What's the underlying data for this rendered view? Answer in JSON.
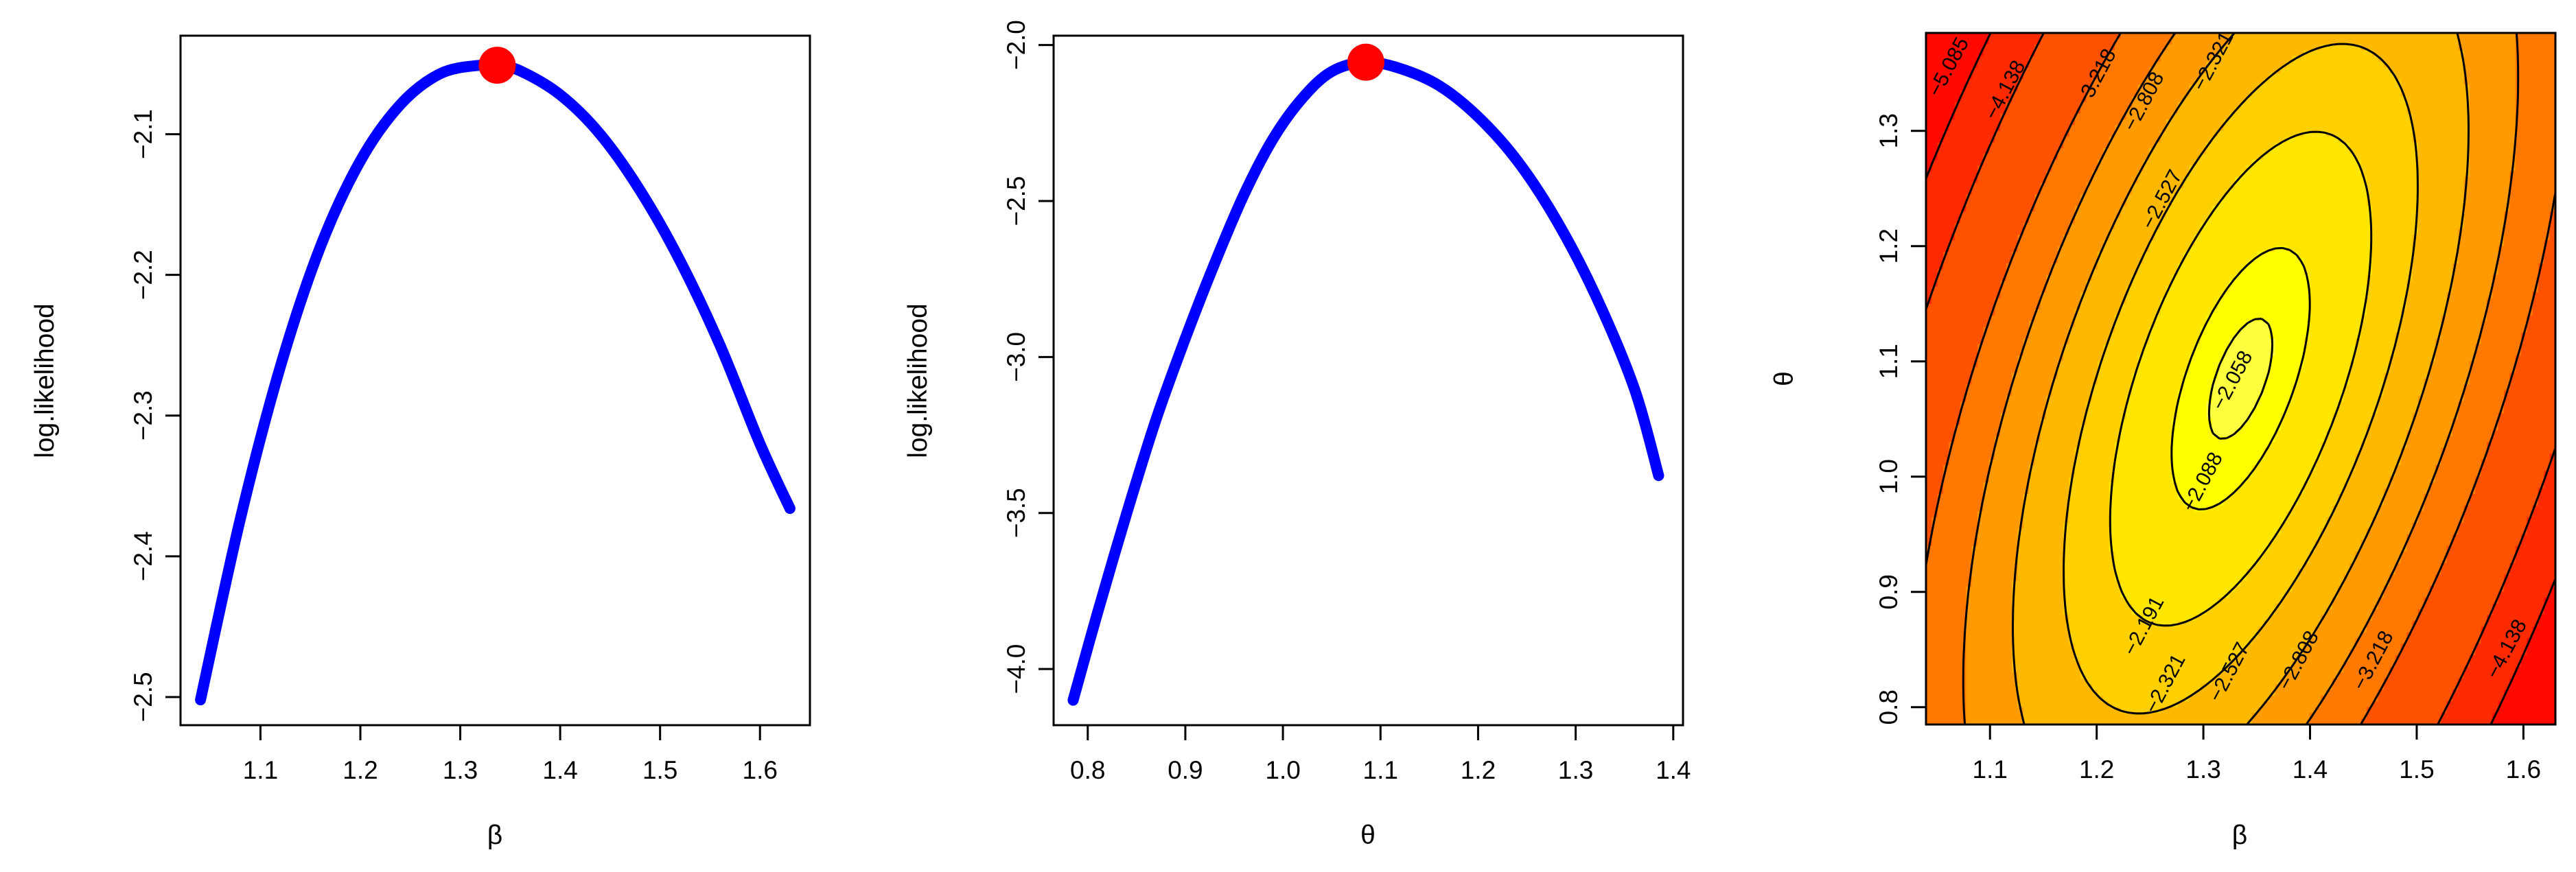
{
  "chart_data": [
    {
      "type": "line",
      "xlabel": "β",
      "ylabel": "log.likelihood",
      "xlim": [
        1.02,
        1.65
      ],
      "ylim": [
        -2.52,
        -2.03
      ],
      "xticks": [
        "1.1",
        "1.2",
        "1.3",
        "1.4",
        "1.5",
        "1.6"
      ],
      "yticks": [
        "-2.5",
        "-2.4",
        "-2.3",
        "-2.2",
        "-2.1"
      ],
      "series": [
        {
          "color": "#0000ff",
          "x": [
            1.04,
            1.08,
            1.12,
            1.16,
            1.2,
            1.24,
            1.28,
            1.32,
            1.34,
            1.36,
            1.4,
            1.44,
            1.48,
            1.52,
            1.56,
            1.6,
            1.63
          ],
          "y": [
            -2.502,
            -2.373,
            -2.265,
            -2.18,
            -2.119,
            -2.079,
            -2.057,
            -2.051,
            -2.052,
            -2.055,
            -2.072,
            -2.1,
            -2.14,
            -2.19,
            -2.25,
            -2.32,
            -2.366
          ]
        }
      ],
      "marker": {
        "x": 1.337,
        "y": -2.051,
        "color": "#ff0000"
      }
    },
    {
      "type": "line",
      "xlabel": "θ",
      "ylabel": "log.likelihood",
      "xlim": [
        0.765,
        1.41
      ],
      "ylim": [
        -4.18,
        -1.97
      ],
      "xticks": [
        "0.8",
        "0.9",
        "1.0",
        "1.1",
        "1.2",
        "1.3",
        "1.4"
      ],
      "yticks": [
        "-4.0",
        "-3.5",
        "-3.0",
        "-2.5",
        "-2.0"
      ],
      "series": [
        {
          "color": "#0000ff",
          "x": [
            0.785,
            0.81,
            0.84,
            0.87,
            0.9,
            0.93,
            0.96,
            0.99,
            1.02,
            1.05,
            1.085,
            1.12,
            1.16,
            1.2,
            1.24,
            1.28,
            1.32,
            1.36,
            1.385
          ],
          "y": [
            -4.1,
            -3.82,
            -3.5,
            -3.2,
            -2.94,
            -2.7,
            -2.48,
            -2.3,
            -2.17,
            -2.085,
            -2.055,
            -2.075,
            -2.13,
            -2.23,
            -2.37,
            -2.56,
            -2.8,
            -3.1,
            -3.38
          ]
        }
      ],
      "marker": {
        "x": 1.085,
        "y": -2.055,
        "color": "#ff0000"
      }
    },
    {
      "type": "heatmap",
      "xlabel": "β",
      "ylabel": "θ",
      "xlim": [
        1.04,
        1.63
      ],
      "ylim": [
        0.785,
        1.385
      ],
      "xticks": [
        "1.1",
        "1.2",
        "1.3",
        "1.4",
        "1.5",
        "1.6"
      ],
      "yticks": [
        "0.8",
        "0.9",
        "1.0",
        "1.1",
        "1.2",
        "1.3"
      ],
      "contour_levels": [
        "-2.058",
        "-2.088",
        "-2.191",
        "-2.321",
        "-2.527",
        "-2.808",
        "-3.218",
        "-4.138",
        "-5.085"
      ],
      "contour_labels": [
        {
          "text": "-5.085",
          "x": 1.062,
          "y": 1.355
        },
        {
          "text": "-4.138",
          "x": 1.115,
          "y": 1.335
        },
        {
          "text": "-3.218",
          "x": 1.2,
          "y": 1.345
        },
        {
          "text": "-2.808",
          "x": 1.245,
          "y": 1.325
        },
        {
          "text": "-2.527",
          "x": 1.262,
          "y": 1.24
        },
        {
          "text": "-2.321",
          "x": 1.31,
          "y": 1.36
        },
        {
          "text": "-2.058",
          "x": 1.328,
          "y": 1.083
        },
        {
          "text": "-2.088",
          "x": 1.3,
          "y": 0.995
        },
        {
          "text": "-2.191",
          "x": 1.245,
          "y": 0.87
        },
        {
          "text": "-2.321",
          "x": 1.265,
          "y": 0.82
        },
        {
          "text": "-2.527",
          "x": 1.325,
          "y": 0.83
        },
        {
          "text": "-2.808",
          "x": 1.39,
          "y": 0.84
        },
        {
          "text": "-3.218",
          "x": 1.46,
          "y": 0.84
        },
        {
          "text": "-4.138",
          "x": 1.585,
          "y": 0.85
        }
      ],
      "colors": {
        "high": "#ffff2a",
        "mid": "#ffc000",
        "low": "#ff1a00"
      }
    }
  ]
}
